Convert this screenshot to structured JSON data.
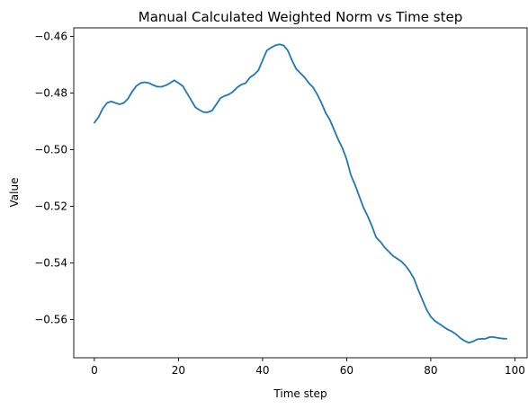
{
  "chart_data": {
    "type": "line",
    "title": "Manual Calculated Weighted Norm vs Time step",
    "xlabel": "Time step",
    "ylabel": "Value",
    "xlim": [
      -4.9,
      102.9
    ],
    "ylim": [
      -0.5735,
      -0.457
    ],
    "xticks": [
      0,
      20,
      40,
      60,
      80,
      100
    ],
    "yticks": [
      -0.56,
      -0.54,
      -0.52,
      -0.5,
      -0.48,
      -0.46
    ],
    "ytick_labels": [
      "−0.56",
      "−0.54",
      "−0.52",
      "−0.50",
      "−0.48",
      "−0.46"
    ],
    "xtick_labels": [
      "0",
      "20",
      "40",
      "60",
      "80",
      "100"
    ],
    "grid": false,
    "line_color": "#1f77b4",
    "series": [
      {
        "x": [
          0,
          1,
          2,
          3,
          4,
          5,
          6,
          7,
          8,
          9,
          10,
          11,
          12,
          13,
          14,
          15,
          16,
          17,
          18,
          19,
          20,
          21,
          22,
          23,
          24,
          25,
          26,
          27,
          28,
          29,
          30,
          31,
          32,
          33,
          34,
          35,
          36,
          37,
          38,
          39,
          40,
          41,
          42,
          43,
          44,
          45,
          46,
          47,
          48,
          49,
          50,
          51,
          52,
          53,
          54,
          55,
          56,
          57,
          58,
          59,
          60,
          61,
          62,
          63,
          64,
          65,
          66,
          67,
          68,
          69,
          70,
          71,
          72,
          73,
          74,
          75,
          76,
          77,
          78,
          79,
          80,
          81,
          82,
          83,
          84,
          85,
          86,
          87,
          88,
          89,
          90,
          91,
          92,
          93,
          94,
          95,
          96,
          97,
          98
        ],
        "values": [
          -0.4905,
          -0.4885,
          -0.4855,
          -0.4835,
          -0.483,
          -0.4835,
          -0.484,
          -0.4835,
          -0.482,
          -0.4795,
          -0.4775,
          -0.4765,
          -0.4762,
          -0.4765,
          -0.4772,
          -0.4778,
          -0.4778,
          -0.4773,
          -0.4765,
          -0.4755,
          -0.4765,
          -0.4775,
          -0.48,
          -0.4825,
          -0.485,
          -0.486,
          -0.4868,
          -0.4868,
          -0.4862,
          -0.484,
          -0.4818,
          -0.481,
          -0.4805,
          -0.4795,
          -0.478,
          -0.477,
          -0.4765,
          -0.4745,
          -0.4735,
          -0.472,
          -0.4685,
          -0.465,
          -0.464,
          -0.4632,
          -0.4628,
          -0.4632,
          -0.465,
          -0.4685,
          -0.4715,
          -0.473,
          -0.4745,
          -0.4765,
          -0.478,
          -0.4805,
          -0.4835,
          -0.487,
          -0.4895,
          -0.493,
          -0.4965,
          -0.4995,
          -0.5035,
          -0.509,
          -0.5125,
          -0.5165,
          -0.5205,
          -0.5235,
          -0.527,
          -0.531,
          -0.5325,
          -0.5345,
          -0.536,
          -0.5375,
          -0.5385,
          -0.5395,
          -0.541,
          -0.543,
          -0.5455,
          -0.5495,
          -0.553,
          -0.5565,
          -0.559,
          -0.5605,
          -0.5615,
          -0.5625,
          -0.5635,
          -0.5642,
          -0.5652,
          -0.5665,
          -0.5675,
          -0.5682,
          -0.5678,
          -0.567,
          -0.5668,
          -0.5668,
          -0.5662,
          -0.5662,
          -0.5665,
          -0.5667,
          -0.5668
        ]
      }
    ]
  }
}
